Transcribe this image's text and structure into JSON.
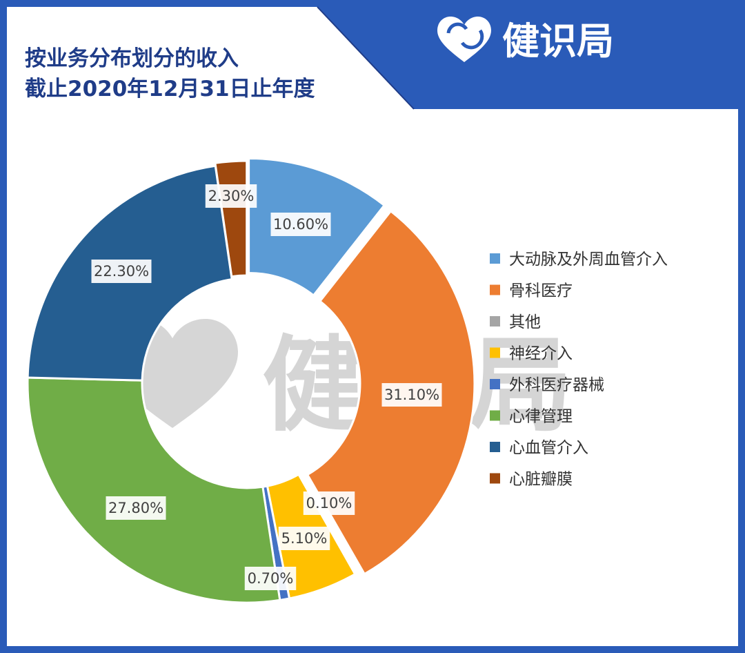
{
  "header": {
    "title_line1": "按业务分布划分的收入",
    "title_line2": "截止2020年12月31日止年度",
    "brand": "健识局",
    "brand_icon": "heart-arrows-icon",
    "frame_color": "#2a5bb8"
  },
  "watermark": {
    "text": "健识局"
  },
  "chart_data": {
    "type": "pie",
    "donut": true,
    "categories": [
      "大动脉及外周血管介入",
      "骨科医疗",
      "其他",
      "神经介入",
      "外科医疗器械",
      "心律管理",
      "心血管介入",
      "心脏瓣膜"
    ],
    "values": [
      10.6,
      31.1,
      0.1,
      5.1,
      0.7,
      27.8,
      22.3,
      2.3
    ],
    "data_labels": [
      "10.60%",
      "31.10%",
      "0.10%",
      "5.10%",
      "0.70%",
      "27.80%",
      "22.30%",
      "2.30%"
    ],
    "colors": [
      "#5b9bd5",
      "#ed7d31",
      "#a5a5a5",
      "#ffc000",
      "#4472c4",
      "#70ad47",
      "#255e91",
      "#9e480e"
    ],
    "title": "按业务分布划分的收入",
    "legend_position": "right"
  }
}
